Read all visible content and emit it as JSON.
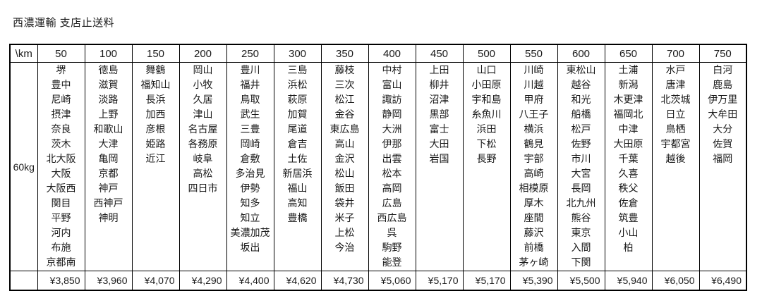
{
  "title": "西濃運輸 支店止送料",
  "corner_label": "\\km",
  "weight_label": "60kg",
  "columns": [
    {
      "distance": "50",
      "cities": [
        "堺",
        "豊中",
        "尼崎",
        "摂津",
        "奈良",
        "茨木",
        "北大阪",
        "大阪",
        "大阪西",
        "関目",
        "平野",
        "河内",
        "布施",
        "京都南"
      ],
      "price": "¥3,850"
    },
    {
      "distance": "100",
      "cities": [
        "徳島",
        "滋賀",
        "淡路",
        "上野",
        "和歌山",
        "大津",
        "亀岡",
        "京都",
        "神戸",
        "西神戸",
        "神明"
      ],
      "price": "¥3,960"
    },
    {
      "distance": "150",
      "cities": [
        "舞鶴",
        "福知山",
        "長浜",
        "加西",
        "彦根",
        "姫路",
        "近江"
      ],
      "price": "¥4,070"
    },
    {
      "distance": "200",
      "cities": [
        "岡山",
        "小牧",
        "久居",
        "津山",
        "名古屋",
        "各務原",
        "岐阜",
        "高松",
        "四日市"
      ],
      "price": "¥4,290"
    },
    {
      "distance": "250",
      "cities": [
        "豊川",
        "福井",
        "鳥取",
        "武生",
        "三豊",
        "岡崎",
        "倉敷",
        "多治見",
        "伊勢",
        "知多",
        "知立",
        "美濃加茂",
        "坂出"
      ],
      "price": "¥4,400"
    },
    {
      "distance": "300",
      "cities": [
        "三島",
        "浜松",
        "萩原",
        "加賀",
        "尾道",
        "倉吉",
        "土佐",
        "新居浜",
        "福山",
        "高知",
        "豊橋"
      ],
      "price": "¥4,620"
    },
    {
      "distance": "350",
      "cities": [
        "藤枝",
        "三次",
        "松江",
        "金谷",
        "東広島",
        "高山",
        "金沢",
        "松山",
        "飯田",
        "袋井",
        "米子",
        "上松",
        "今治"
      ],
      "price": "¥4,730"
    },
    {
      "distance": "400",
      "cities": [
        "中村",
        "富山",
        "諏訪",
        "静岡",
        "大洲",
        "伊那",
        "出雲",
        "松本",
        "高岡",
        "広島",
        "西広島",
        "呉",
        "駒野",
        "能登"
      ],
      "price": "¥5,060"
    },
    {
      "distance": "450",
      "cities": [
        "上田",
        "柳井",
        "沼津",
        "黒部",
        "富士",
        "大田",
        "岩国"
      ],
      "price": "¥5,170"
    },
    {
      "distance": "500",
      "cities": [
        "山口",
        "小田原",
        "宇和島",
        "糸魚川",
        "浜田",
        "下松",
        "長野"
      ],
      "price": "¥5,170"
    },
    {
      "distance": "550",
      "cities": [
        "川崎",
        "川越",
        "甲府",
        "八王子",
        "横浜",
        "鶴見",
        "宇部",
        "高崎",
        "相模原",
        "厚木",
        "座間",
        "藤沢",
        "前橋",
        "茅ヶ崎"
      ],
      "price": "¥5,390"
    },
    {
      "distance": "600",
      "cities": [
        "東松山",
        "越谷",
        "和光",
        "船橋",
        "松戸",
        "佐野",
        "市川",
        "大宮",
        "長岡",
        "北九州",
        "熊谷",
        "東京",
        "入間",
        "下関"
      ],
      "price": "¥5,500"
    },
    {
      "distance": "650",
      "cities": [
        "土浦",
        "新潟",
        "木更津",
        "福岡北",
        "中津",
        "大田原",
        "千葉",
        "久喜",
        "秩父",
        "佐倉",
        "筑豊",
        "小山",
        "柏"
      ],
      "price": "¥5,940"
    },
    {
      "distance": "700",
      "cities": [
        "水戸",
        "唐津",
        "北茨城",
        "日立",
        "鳥栖",
        "宇都宮",
        "越後"
      ],
      "price": "¥6,050"
    },
    {
      "distance": "750",
      "cities": [
        "白河",
        "鹿島",
        "伊万里",
        "大牟田",
        "大分",
        "佐賀",
        "福岡"
      ],
      "price": "¥6,490"
    }
  ]
}
